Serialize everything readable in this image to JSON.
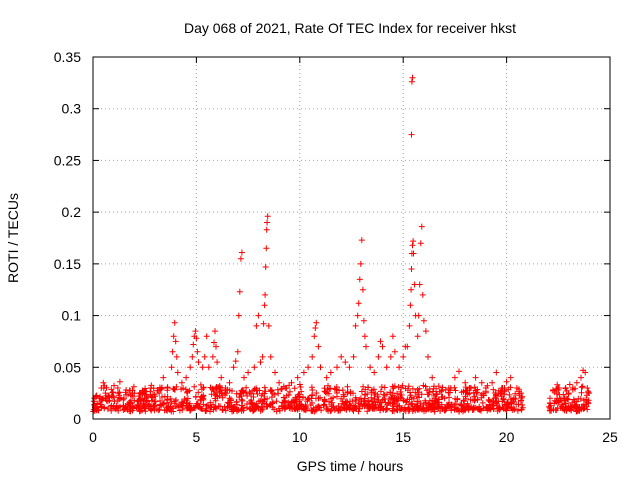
{
  "chart_data": {
    "type": "scatter",
    "title": "Day 068 of 2021, Rate Of TEC Index for receiver hkst",
    "xlabel": "GPS time / hours",
    "ylabel": "ROTI / TECUs",
    "xlim": [
      0,
      25
    ],
    "ylim": [
      0,
      0.35
    ],
    "x_ticks": [
      0,
      5,
      10,
      15,
      20,
      25
    ],
    "y_ticks": [
      0,
      0.05,
      0.1,
      0.15,
      0.2,
      0.25,
      0.3,
      0.35
    ],
    "x_tick_labels": [
      "0",
      "5",
      "10",
      "15",
      "20",
      "25"
    ],
    "y_tick_labels": [
      "0",
      "0.05",
      "0.1",
      "0.15",
      "0.2",
      "0.25",
      "0.3",
      "0.35"
    ],
    "grid": true,
    "marker": "plus",
    "color": "#ff0000",
    "data_gap_hours": [
      20.8,
      22.0
    ],
    "series": [
      {
        "points": [
          [
            0.1,
            0.012
          ],
          [
            0.2,
            0.015
          ],
          [
            0.3,
            0.02
          ],
          [
            0.4,
            0.03
          ],
          [
            0.5,
            0.035
          ],
          [
            0.6,
            0.025
          ],
          [
            0.8,
            0.018
          ],
          [
            1.0,
            0.022
          ],
          [
            1.2,
            0.03
          ],
          [
            1.3,
            0.036
          ],
          [
            1.5,
            0.02
          ],
          [
            1.8,
            0.015
          ],
          [
            2.0,
            0.025
          ],
          [
            2.2,
            0.018
          ],
          [
            2.5,
            0.02
          ],
          [
            2.8,
            0.03
          ],
          [
            3.0,
            0.022
          ],
          [
            3.2,
            0.025
          ],
          [
            3.4,
            0.04
          ],
          [
            3.6,
            0.03
          ],
          [
            3.8,
            0.05
          ],
          [
            3.85,
            0.065
          ],
          [
            3.9,
            0.08
          ],
          [
            3.95,
            0.093
          ],
          [
            4.0,
            0.075
          ],
          [
            4.05,
            0.06
          ],
          [
            4.1,
            0.045
          ],
          [
            4.3,
            0.035
          ],
          [
            4.5,
            0.04
          ],
          [
            4.7,
            0.05
          ],
          [
            4.8,
            0.06
          ],
          [
            4.85,
            0.072
          ],
          [
            4.9,
            0.08
          ],
          [
            4.95,
            0.085
          ],
          [
            5.0,
            0.078
          ],
          [
            5.05,
            0.065
          ],
          [
            5.1,
            0.055
          ],
          [
            5.3,
            0.05
          ],
          [
            5.4,
            0.06
          ],
          [
            5.5,
            0.08
          ],
          [
            5.6,
            0.05
          ],
          [
            5.8,
            0.06
          ],
          [
            5.85,
            0.074
          ],
          [
            5.9,
            0.085
          ],
          [
            5.95,
            0.07
          ],
          [
            6.0,
            0.055
          ],
          [
            6.2,
            0.04
          ],
          [
            6.4,
            0.03
          ],
          [
            6.6,
            0.035
          ],
          [
            6.8,
            0.05
          ],
          [
            6.9,
            0.056
          ],
          [
            7.0,
            0.065
          ],
          [
            7.05,
            0.1
          ],
          [
            7.1,
            0.123
          ],
          [
            7.15,
            0.155
          ],
          [
            7.2,
            0.161
          ],
          [
            7.3,
            0.04
          ],
          [
            7.5,
            0.045
          ],
          [
            7.8,
            0.05
          ],
          [
            7.9,
            0.09
          ],
          [
            8.0,
            0.1
          ],
          [
            8.1,
            0.055
          ],
          [
            8.2,
            0.06
          ],
          [
            8.25,
            0.092
          ],
          [
            8.3,
            0.11
          ],
          [
            8.32,
            0.12
          ],
          [
            8.35,
            0.147
          ],
          [
            8.38,
            0.165
          ],
          [
            8.4,
            0.183
          ],
          [
            8.42,
            0.19
          ],
          [
            8.45,
            0.196
          ],
          [
            8.5,
            0.09
          ],
          [
            8.6,
            0.06
          ],
          [
            8.8,
            0.045
          ],
          [
            9.0,
            0.035
          ],
          [
            9.3,
            0.03
          ],
          [
            9.6,
            0.035
          ],
          [
            9.9,
            0.04
          ],
          [
            10.2,
            0.045
          ],
          [
            10.4,
            0.05
          ],
          [
            10.6,
            0.06
          ],
          [
            10.7,
            0.08
          ],
          [
            10.75,
            0.088
          ],
          [
            10.8,
            0.093
          ],
          [
            10.9,
            0.07
          ],
          [
            11.0,
            0.05
          ],
          [
            11.3,
            0.04
          ],
          [
            11.5,
            0.045
          ],
          [
            11.8,
            0.05
          ],
          [
            12.0,
            0.06
          ],
          [
            12.2,
            0.055
          ],
          [
            12.4,
            0.05
          ],
          [
            12.6,
            0.06
          ],
          [
            12.7,
            0.09
          ],
          [
            12.8,
            0.1
          ],
          [
            12.85,
            0.112
          ],
          [
            12.9,
            0.135
          ],
          [
            12.95,
            0.15
          ],
          [
            13.0,
            0.173
          ],
          [
            13.05,
            0.125
          ],
          [
            13.1,
            0.095
          ],
          [
            13.15,
            0.08
          ],
          [
            13.2,
            0.07
          ],
          [
            13.4,
            0.05
          ],
          [
            13.6,
            0.045
          ],
          [
            13.8,
            0.06
          ],
          [
            13.9,
            0.075
          ],
          [
            14.0,
            0.07
          ],
          [
            14.2,
            0.05
          ],
          [
            14.4,
            0.06
          ],
          [
            14.5,
            0.08
          ],
          [
            14.6,
            0.065
          ],
          [
            14.8,
            0.05
          ],
          [
            15.0,
            0.06
          ],
          [
            15.1,
            0.07
          ],
          [
            15.2,
            0.07
          ],
          [
            15.3,
            0.09
          ],
          [
            15.35,
            0.11
          ],
          [
            15.38,
            0.125
          ],
          [
            15.4,
            0.145
          ],
          [
            15.42,
            0.16
          ],
          [
            15.45,
            0.168
          ],
          [
            15.48,
            0.172
          ],
          [
            15.4,
            0.275
          ],
          [
            15.42,
            0.326
          ],
          [
            15.45,
            0.33
          ],
          [
            15.5,
            0.16
          ],
          [
            15.55,
            0.13
          ],
          [
            15.6,
            0.1
          ],
          [
            15.7,
            0.08
          ],
          [
            15.75,
            0.1
          ],
          [
            15.8,
            0.13
          ],
          [
            15.85,
            0.17
          ],
          [
            15.9,
            0.186
          ],
          [
            15.95,
            0.12
          ],
          [
            16.0,
            0.095
          ],
          [
            16.1,
            0.085
          ],
          [
            16.2,
            0.06
          ],
          [
            16.4,
            0.04
          ],
          [
            16.6,
            0.018
          ],
          [
            17.0,
            0.02
          ],
          [
            17.3,
            0.03
          ],
          [
            17.5,
            0.04
          ],
          [
            17.7,
            0.046
          ],
          [
            18.0,
            0.035
          ],
          [
            18.2,
            0.03
          ],
          [
            18.5,
            0.04
          ],
          [
            18.8,
            0.035
          ],
          [
            19.0,
            0.03
          ],
          [
            19.3,
            0.035
          ],
          [
            19.5,
            0.045
          ],
          [
            19.8,
            0.03
          ],
          [
            20.0,
            0.036
          ],
          [
            20.2,
            0.04
          ],
          [
            20.5,
            0.03
          ],
          [
            20.7,
            0.025
          ],
          [
            22.1,
            0.02
          ],
          [
            22.3,
            0.015
          ],
          [
            22.5,
            0.03
          ],
          [
            22.8,
            0.02
          ],
          [
            23.0,
            0.025
          ],
          [
            23.2,
            0.03
          ],
          [
            23.4,
            0.035
          ],
          [
            23.6,
            0.04
          ],
          [
            23.7,
            0.047
          ],
          [
            23.8,
            0.045
          ],
          [
            23.9,
            0.03
          ]
        ]
      }
    ]
  }
}
